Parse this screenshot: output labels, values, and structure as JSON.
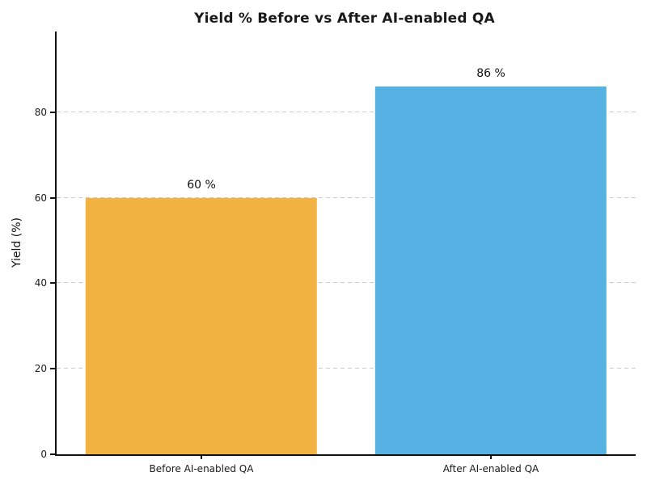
{
  "chart_data": {
    "type": "bar",
    "title": "Yield % Before vs After AI-enabled QA",
    "categories": [
      "Before AI-enabled QA",
      "After AI-enabled QA"
    ],
    "values": [
      60,
      86
    ],
    "bar_labels": [
      "60 %",
      "86 %"
    ],
    "bar_colors": [
      "#f2b342",
      "#57b2e4"
    ],
    "xlabel": "",
    "ylabel": "Yield (%)",
    "yticks": [
      0,
      20,
      40,
      60,
      80
    ],
    "ylim": [
      0,
      98.9
    ],
    "grid": "horizontal-dashed",
    "grid_color": "#cccccc",
    "legend_position": "none",
    "spines": [
      "left",
      "bottom"
    ],
    "background_color": "#ffffff",
    "text_color": "#1a1a1a"
  }
}
